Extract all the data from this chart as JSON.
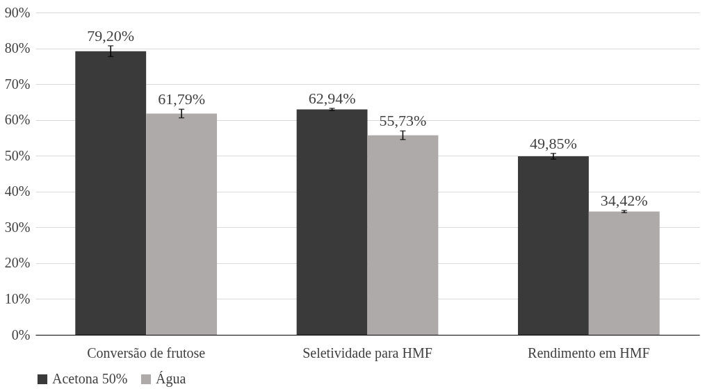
{
  "chart_data": {
    "type": "bar",
    "categories": [
      "Conversão de frutose",
      "Seletividade para HMF",
      "Rendimento em HMF"
    ],
    "series": [
      {
        "name": "Acetona 50%",
        "color": "#3a3a3a",
        "values": [
          79.2,
          62.94,
          49.85
        ],
        "errors": [
          1.5,
          0.3,
          0.8
        ],
        "value_labels": [
          "79,20%",
          "62,94%",
          "49,85%"
        ]
      },
      {
        "name": "Água",
        "color": "#aeaaaa",
        "values": [
          61.79,
          55.73,
          34.42
        ],
        "errors": [
          1.2,
          1.2,
          0.3
        ],
        "value_labels": [
          "61,79%",
          "55,73%",
          "34,42%"
        ]
      }
    ],
    "ylim": [
      0,
      90
    ],
    "yticks": [
      {
        "value": 0,
        "label": "0%"
      },
      {
        "value": 10,
        "label": "10%"
      },
      {
        "value": 20,
        "label": "20%"
      },
      {
        "value": 30,
        "label": "30%"
      },
      {
        "value": 40,
        "label": "40%"
      },
      {
        "value": 50,
        "label": "50%"
      },
      {
        "value": 60,
        "label": "60%"
      },
      {
        "value": 70,
        "label": "70%"
      },
      {
        "value": 80,
        "label": "80%"
      },
      {
        "value": 90,
        "label": "90%"
      }
    ],
    "grid": "y",
    "legend": "bottom"
  }
}
